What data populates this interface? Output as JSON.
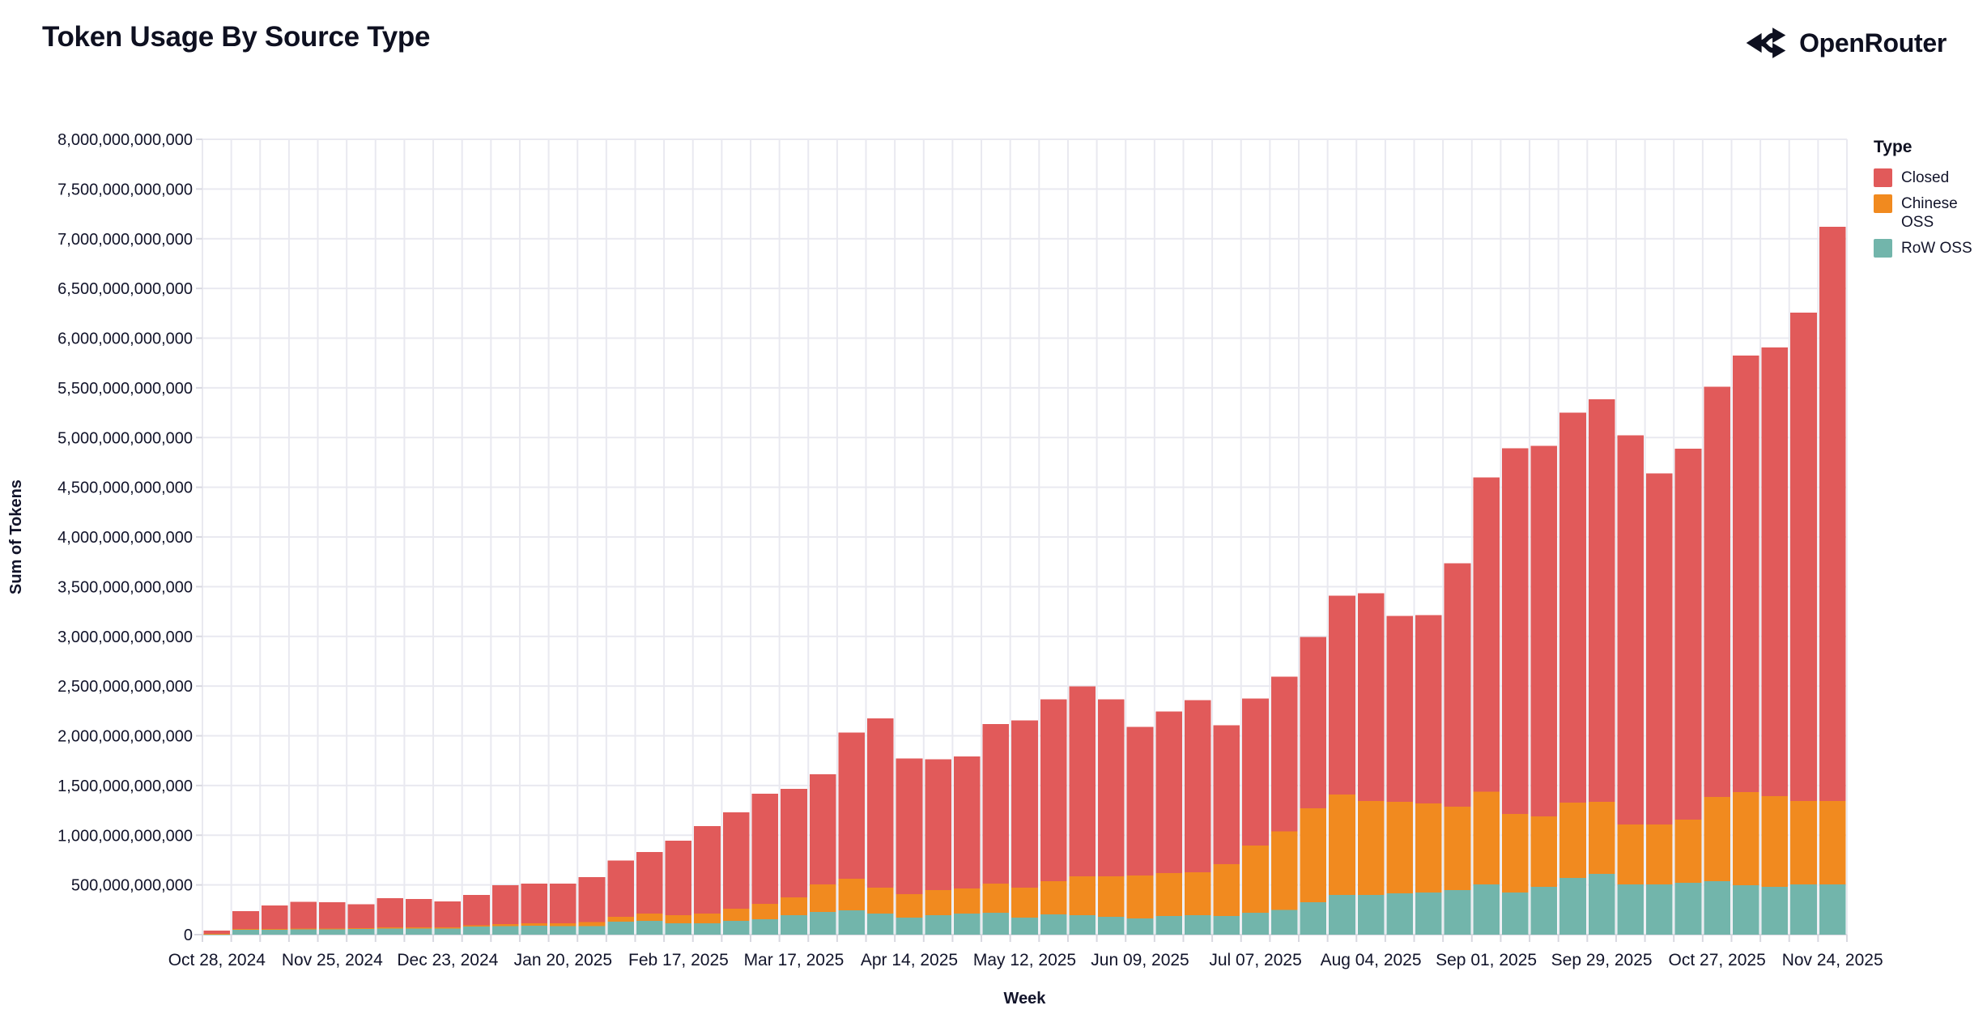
{
  "header": {
    "title": "Token Usage By Source Type",
    "brand": "OpenRouter"
  },
  "legend": {
    "title": "Type",
    "items": [
      {
        "label": "Closed",
        "color": "#e15a5a"
      },
      {
        "label": "Chinese OSS",
        "color": "#f18a1f"
      },
      {
        "label": "RoW OSS",
        "color": "#72b5ab"
      }
    ]
  },
  "colors": {
    "background": "#ffffff",
    "gridline": "#e9e9f0",
    "axis_line": "#d8d8e0",
    "text": "#12142a",
    "closed": "#e15a5a",
    "chinese_oss": "#f18a1f",
    "row_oss": "#72b5ab"
  },
  "chart_data": {
    "type": "bar",
    "stacked": true,
    "title": "Token Usage By Source Type",
    "xlabel": "Week",
    "ylabel": "Sum of Tokens",
    "ylim": [
      0,
      8000000000000
    ],
    "ytick_step": 500000000000,
    "grid": true,
    "legend_position": "right",
    "y_tick_labels": [
      "0",
      "500,000,000,000",
      "1,000,000,000,000",
      "1,500,000,000,000",
      "2,000,000,000,000",
      "2,500,000,000,000",
      "3,000,000,000,000",
      "3,500,000,000,000",
      "4,000,000,000,000",
      "4,500,000,000,000",
      "5,000,000,000,000",
      "5,500,000,000,000",
      "6,000,000,000,000",
      "6,500,000,000,000",
      "7,000,000,000,000",
      "7,500,000,000,000",
      "8,000,000,000,000"
    ],
    "x_tick_every": 4,
    "x_tick_labels": [
      "Oct 28, 2024",
      "Nov 25, 2024",
      "Dec 23, 2024",
      "Jan 20, 2025",
      "Feb 17, 2025",
      "Mar 17, 2025",
      "Apr 14, 2025",
      "May 12, 2025",
      "Jun 09, 2025",
      "Jul 07, 2025",
      "Aug 04, 2025",
      "Sep 01, 2025",
      "Sep 29, 2025",
      "Oct 27, 2025",
      "Nov 24, 2025"
    ],
    "categories": [
      "Oct 28, 2024",
      "Nov 04, 2024",
      "Nov 11, 2024",
      "Nov 18, 2024",
      "Nov 25, 2024",
      "Dec 02, 2024",
      "Dec 09, 2024",
      "Dec 16, 2024",
      "Dec 23, 2024",
      "Dec 30, 2024",
      "Jan 06, 2025",
      "Jan 13, 2025",
      "Jan 20, 2025",
      "Jan 27, 2025",
      "Feb 03, 2025",
      "Feb 10, 2025",
      "Feb 17, 2025",
      "Feb 24, 2025",
      "Mar 03, 2025",
      "Mar 10, 2025",
      "Mar 17, 2025",
      "Mar 24, 2025",
      "Mar 31, 2025",
      "Apr 07, 2025",
      "Apr 14, 2025",
      "Apr 21, 2025",
      "Apr 28, 2025",
      "May 05, 2025",
      "May 12, 2025",
      "May 19, 2025",
      "May 26, 2025",
      "Jun 02, 2025",
      "Jun 09, 2025",
      "Jun 16, 2025",
      "Jun 23, 2025",
      "Jun 30, 2025",
      "Jul 07, 2025",
      "Jul 14, 2025",
      "Jul 21, 2025",
      "Jul 28, 2025",
      "Aug 04, 2025",
      "Aug 11, 2025",
      "Aug 18, 2025",
      "Aug 25, 2025",
      "Sep 01, 2025",
      "Sep 08, 2025",
      "Sep 15, 2025",
      "Sep 22, 2025",
      "Sep 29, 2025",
      "Oct 06, 2025",
      "Oct 13, 2025",
      "Oct 20, 2025",
      "Oct 27, 2025",
      "Nov 03, 2025",
      "Nov 10, 2025",
      "Nov 17, 2025",
      "Nov 24, 2025"
    ],
    "series": [
      {
        "name": "RoW OSS",
        "color": "#72b5ab",
        "values": [
          5000000000,
          50000000000,
          50000000000,
          52000000000,
          52000000000,
          55000000000,
          60000000000,
          60000000000,
          60000000000,
          80000000000,
          85000000000,
          88000000000,
          85000000000,
          85000000000,
          130000000000,
          139000000000,
          114000000000,
          114000000000,
          139000000000,
          155000000000,
          196000000000,
          228000000000,
          245000000000,
          212000000000,
          171000000000,
          196000000000,
          212000000000,
          220000000000,
          171000000000,
          204000000000,
          196000000000,
          180000000000,
          163000000000,
          188000000000,
          196000000000,
          188000000000,
          220000000000,
          250000000000,
          326000000000,
          400000000000,
          400000000000,
          416000000000,
          424000000000,
          449000000000,
          506000000000,
          424000000000,
          481000000000,
          571000000000,
          612000000000,
          506000000000,
          506000000000,
          522000000000,
          538000000000,
          497000000000,
          481000000000,
          506000000000,
          506000000000
        ]
      },
      {
        "name": "Chinese OSS",
        "color": "#f18a1f",
        "values": [
          3000000000,
          8000000000,
          8000000000,
          10000000000,
          10000000000,
          10000000000,
          12000000000,
          12000000000,
          12000000000,
          15000000000,
          20000000000,
          25000000000,
          30000000000,
          40000000000,
          50000000000,
          73000000000,
          82000000000,
          98000000000,
          122000000000,
          155000000000,
          179000000000,
          277000000000,
          318000000000,
          261000000000,
          237000000000,
          253000000000,
          253000000000,
          294000000000,
          302000000000,
          334000000000,
          392000000000,
          408000000000,
          432000000000,
          432000000000,
          432000000000,
          522000000000,
          677000000000,
          790000000000,
          946000000000,
          1011000000000,
          946000000000,
          922000000000,
          897000000000,
          840000000000,
          930000000000,
          791000000000,
          709000000000,
          758000000000,
          726000000000,
          603000000000,
          600000000000,
          636000000000,
          848000000000,
          938000000000,
          913000000000,
          840000000000,
          840000000000
        ]
      },
      {
        "name": "Closed",
        "color": "#e15a5a",
        "values": [
          32000000000,
          180000000000,
          236000000000,
          268000000000,
          262000000000,
          240000000000,
          295000000000,
          287000000000,
          262000000000,
          305000000000,
          392000000000,
          401000000000,
          399000000000,
          454000000000,
          566000000000,
          620000000000,
          750000000000,
          881000000000,
          970000000000,
          1109000000000,
          1093000000000,
          1110000000000,
          1468000000000,
          1704000000000,
          1362000000000,
          1313000000000,
          1329000000000,
          1606000000000,
          1680000000000,
          1827000000000,
          1908000000000,
          1777000000000,
          1493000000000,
          1623000000000,
          1729000000000,
          1394000000000,
          1476000000000,
          1553000000000,
          1721000000000,
          1998000000000,
          2088000000000,
          1867000000000,
          1892000000000,
          2446000000000,
          3164000000000,
          3678000000000,
          3728000000000,
          3923000000000,
          4045000000000,
          3915000000000,
          3534000000000,
          3732000000000,
          4124000000000,
          4388000000000,
          4511000000000,
          4909000000000,
          5774000000000
        ]
      }
    ]
  }
}
